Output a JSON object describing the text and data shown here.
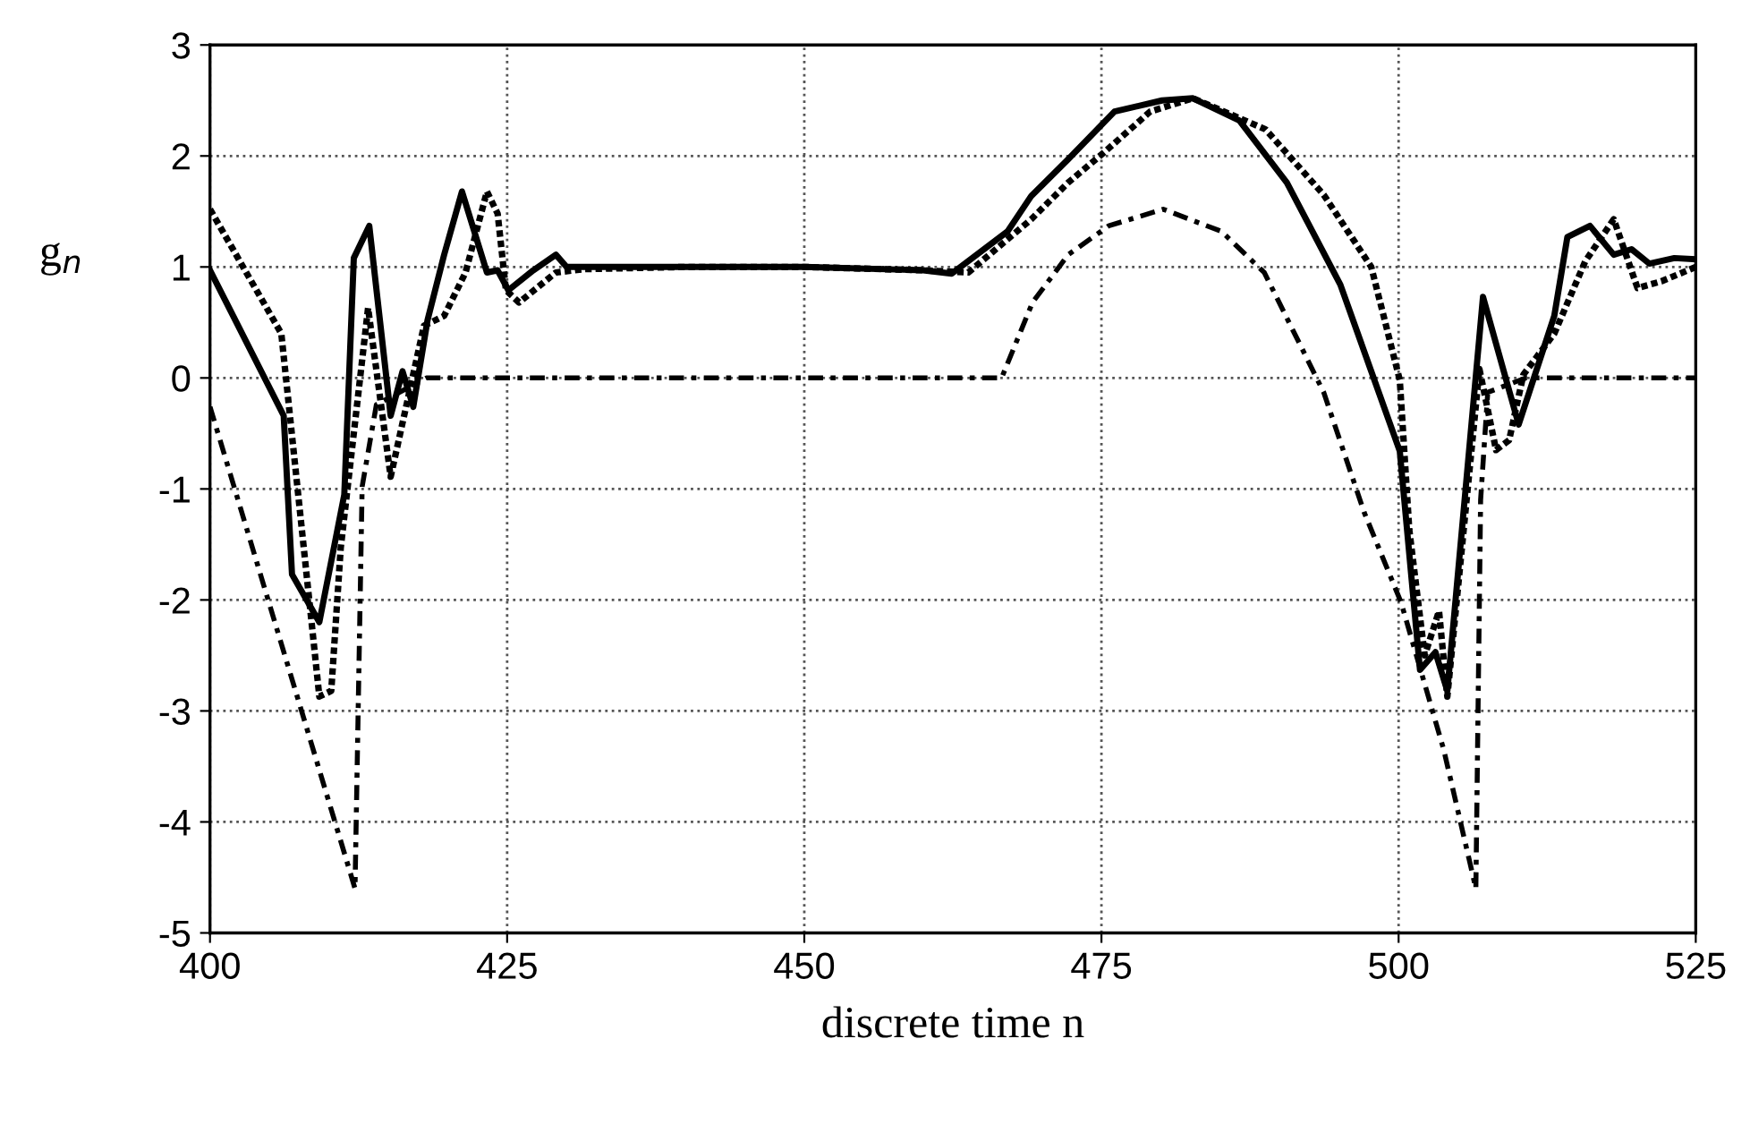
{
  "chart_data": {
    "type": "line",
    "xlabel": "discrete time n",
    "ylabel": "g$_{n}$",
    "xlim": [
      400,
      525
    ],
    "ylim": [
      -5,
      3
    ],
    "xticks": [
      400,
      425,
      450,
      475,
      500,
      525
    ],
    "yticks": [
      -5,
      -4,
      -3,
      -2,
      -1,
      0,
      1,
      2,
      3
    ],
    "grid": true,
    "legend": false,
    "series": [
      {
        "color": "#000000",
        "line_style": "solid",
        "x": [
          400,
          406.2,
          406.9,
          409.2,
          411.3,
          412.1,
          413.4,
          415.2,
          416.2,
          417.1,
          418.3,
          419.7,
          421.2,
          423.3,
          424.2,
          425.1,
          427.2,
          429.1,
          430,
          440,
          450,
          460,
          462.4,
          467.1,
          469.1,
          472.2,
          476.1,
          480.1,
          482.7,
          486.6,
          490.6,
          495.1,
          500.1,
          501.8,
          503.1,
          504.1,
          507.1,
          510.1,
          513.1,
          514.2,
          516.1,
          518.1,
          519.6,
          521.1,
          523.2,
          525
        ],
        "values": [
          0.97,
          -0.34,
          -1.77,
          -2.2,
          -1.05,
          1.08,
          1.37,
          -0.34,
          0.06,
          -0.26,
          0.52,
          1.11,
          1.68,
          0.95,
          0.97,
          0.79,
          0.97,
          1.11,
          1.0,
          1.0,
          1.0,
          0.97,
          0.94,
          1.32,
          1.64,
          1.97,
          2.4,
          2.5,
          2.52,
          2.32,
          1.76,
          0.84,
          -0.66,
          -2.63,
          -2.47,
          -2.82,
          0.73,
          -0.42,
          0.56,
          1.27,
          1.37,
          1.11,
          1.16,
          1.03,
          1.08,
          1.07
        ]
      },
      {
        "color": "#000000",
        "line_style": "dotted",
        "x": [
          400,
          406,
          409.2,
          410.2,
          411,
          413.3,
          415.2,
          418,
          419.7,
          421.5,
          423.3,
          424.2,
          424.9,
          426,
          429.1,
          431.4,
          440,
          450,
          460,
          463.8,
          469.1,
          472.2,
          475.2,
          479.1,
          482.7,
          488.8,
          493.7,
          497.7,
          500.1,
          500.9,
          502.2,
          503.4,
          504.1,
          506.8,
          508.2,
          509.3,
          510.5,
          513.1,
          515.7,
          518.1,
          520.1,
          522.1,
          525
        ],
        "values": [
          1.52,
          0.4,
          -2.87,
          -2.82,
          -1.53,
          0.63,
          -0.89,
          0.47,
          0.56,
          0.95,
          1.68,
          1.48,
          0.79,
          0.68,
          0.95,
          0.98,
          1.0,
          1.0,
          0.97,
          0.95,
          1.43,
          1.76,
          2.03,
          2.4,
          2.52,
          2.24,
          1.65,
          1.0,
          -0.02,
          -1.37,
          -2.5,
          -2.1,
          -2.87,
          0.08,
          -0.65,
          -0.56,
          0.03,
          0.4,
          1.05,
          1.43,
          0.81,
          0.87,
          1.0
        ]
      },
      {
        "color": "#000000",
        "line_style": "dashdot",
        "x": [
          400,
          412.2,
          412.8,
          414,
          418.2,
          440,
          466.6,
          469.2,
          472.2,
          475.6,
          480.2,
          485.1,
          488.7,
          493.7,
          497.1,
          500.2,
          503.8,
          506.5,
          506.9,
          507.5,
          510.7,
          525
        ],
        "values": [
          -0.26,
          -4.6,
          -0.98,
          -0.24,
          0,
          0,
          0,
          0.68,
          1.11,
          1.37,
          1.52,
          1.32,
          0.95,
          -0.13,
          -1.21,
          -2.02,
          -3.35,
          -4.6,
          -1.1,
          -0.13,
          0,
          0
        ]
      }
    ]
  }
}
